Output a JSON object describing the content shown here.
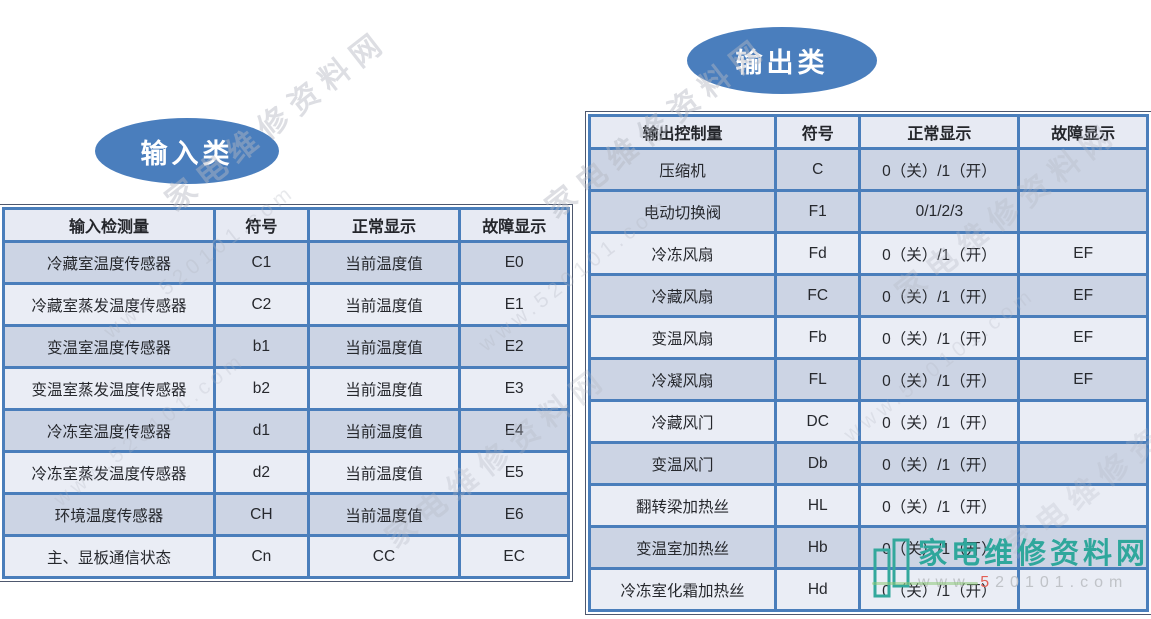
{
  "input_section": {
    "badge_label": "输入类",
    "table": {
      "headers": [
        "输入检测量",
        "符号",
        "正常显示",
        "故障显示"
      ],
      "rows": [
        {
          "shade": "dark",
          "cells": [
            "冷藏室温度传感器",
            "C1",
            "当前温度值",
            "E0"
          ]
        },
        {
          "shade": "light",
          "cells": [
            "冷藏室蒸发温度传感器",
            "C2",
            "当前温度值",
            "E1"
          ]
        },
        {
          "shade": "dark",
          "cells": [
            "变温室温度传感器",
            "b1",
            "当前温度值",
            "E2"
          ]
        },
        {
          "shade": "light",
          "cells": [
            "变温室蒸发温度传感器",
            "b2",
            "当前温度值",
            "E3"
          ]
        },
        {
          "shade": "dark",
          "cells": [
            "冷冻室温度传感器",
            "d1",
            "当前温度值",
            "E4"
          ]
        },
        {
          "shade": "light",
          "cells": [
            "冷冻室蒸发温度传感器",
            "d2",
            "当前温度值",
            "E5"
          ]
        },
        {
          "shade": "dark",
          "cells": [
            "环境温度传感器",
            "CH",
            "当前温度值",
            "E6"
          ]
        },
        {
          "shade": "light",
          "cells": [
            "主、显板通信状态",
            "Cn",
            "CC",
            "EC"
          ]
        }
      ]
    }
  },
  "output_section": {
    "badge_label": "输出类",
    "table": {
      "headers": [
        "输出控制量",
        "符号",
        "正常显示",
        "故障显示"
      ],
      "rows": [
        {
          "shade": "dark",
          "cells": [
            "压缩机",
            "C",
            "0（关）/1（开）",
            ""
          ]
        },
        {
          "shade": "dark",
          "cells": [
            "电动切换阀",
            "F1",
            "0/1/2/3",
            ""
          ]
        },
        {
          "shade": "light",
          "cells": [
            "冷冻风扇",
            "Fd",
            "0（关）/1（开）",
            "EF"
          ]
        },
        {
          "shade": "dark",
          "cells": [
            "冷藏风扇",
            "FC",
            "0（关）/1（开）",
            "EF"
          ]
        },
        {
          "shade": "light",
          "cells": [
            "变温风扇",
            "Fb",
            "0（关）/1（开）",
            "EF"
          ]
        },
        {
          "shade": "dark",
          "cells": [
            "冷凝风扇",
            "FL",
            "0（关）/1（开）",
            "EF"
          ]
        },
        {
          "shade": "light",
          "cells": [
            "冷藏风门",
            "DC",
            "0（关）/1（开）",
            ""
          ]
        },
        {
          "shade": "dark",
          "cells": [
            "变温风门",
            "Db",
            "0（关）/1（开）",
            ""
          ]
        },
        {
          "shade": "light",
          "cells": [
            "翻转梁加热丝",
            "HL",
            "0（关）/1（开）",
            ""
          ]
        },
        {
          "shade": "dark",
          "cells": [
            "变温室加热丝",
            "Hb",
            "0（关）/1（开）",
            ""
          ]
        },
        {
          "shade": "light",
          "cells": [
            "冷冻室化霜加热丝",
            "Hd",
            "0（关）/1（开）",
            ""
          ]
        }
      ]
    }
  },
  "watermark": {
    "site_name": "家电维修资料网",
    "site_url": "www.520101.com"
  },
  "logo": {
    "site_name": "家电维修资料网",
    "url_prefix": "www.",
    "url_accent": "5",
    "url_rest": "20101.com"
  },
  "colors": {
    "accent_blue": "#4a7ebd",
    "table_border_blue": "#4a7ebb",
    "row_dark": "#ccd4e4",
    "row_light": "#eaedf5",
    "header_bg": "#e7eaf3",
    "logo_teal": "#2fa79c",
    "url_accent_red": "#e25f55",
    "watermark_gray": "#b4b8c2"
  }
}
